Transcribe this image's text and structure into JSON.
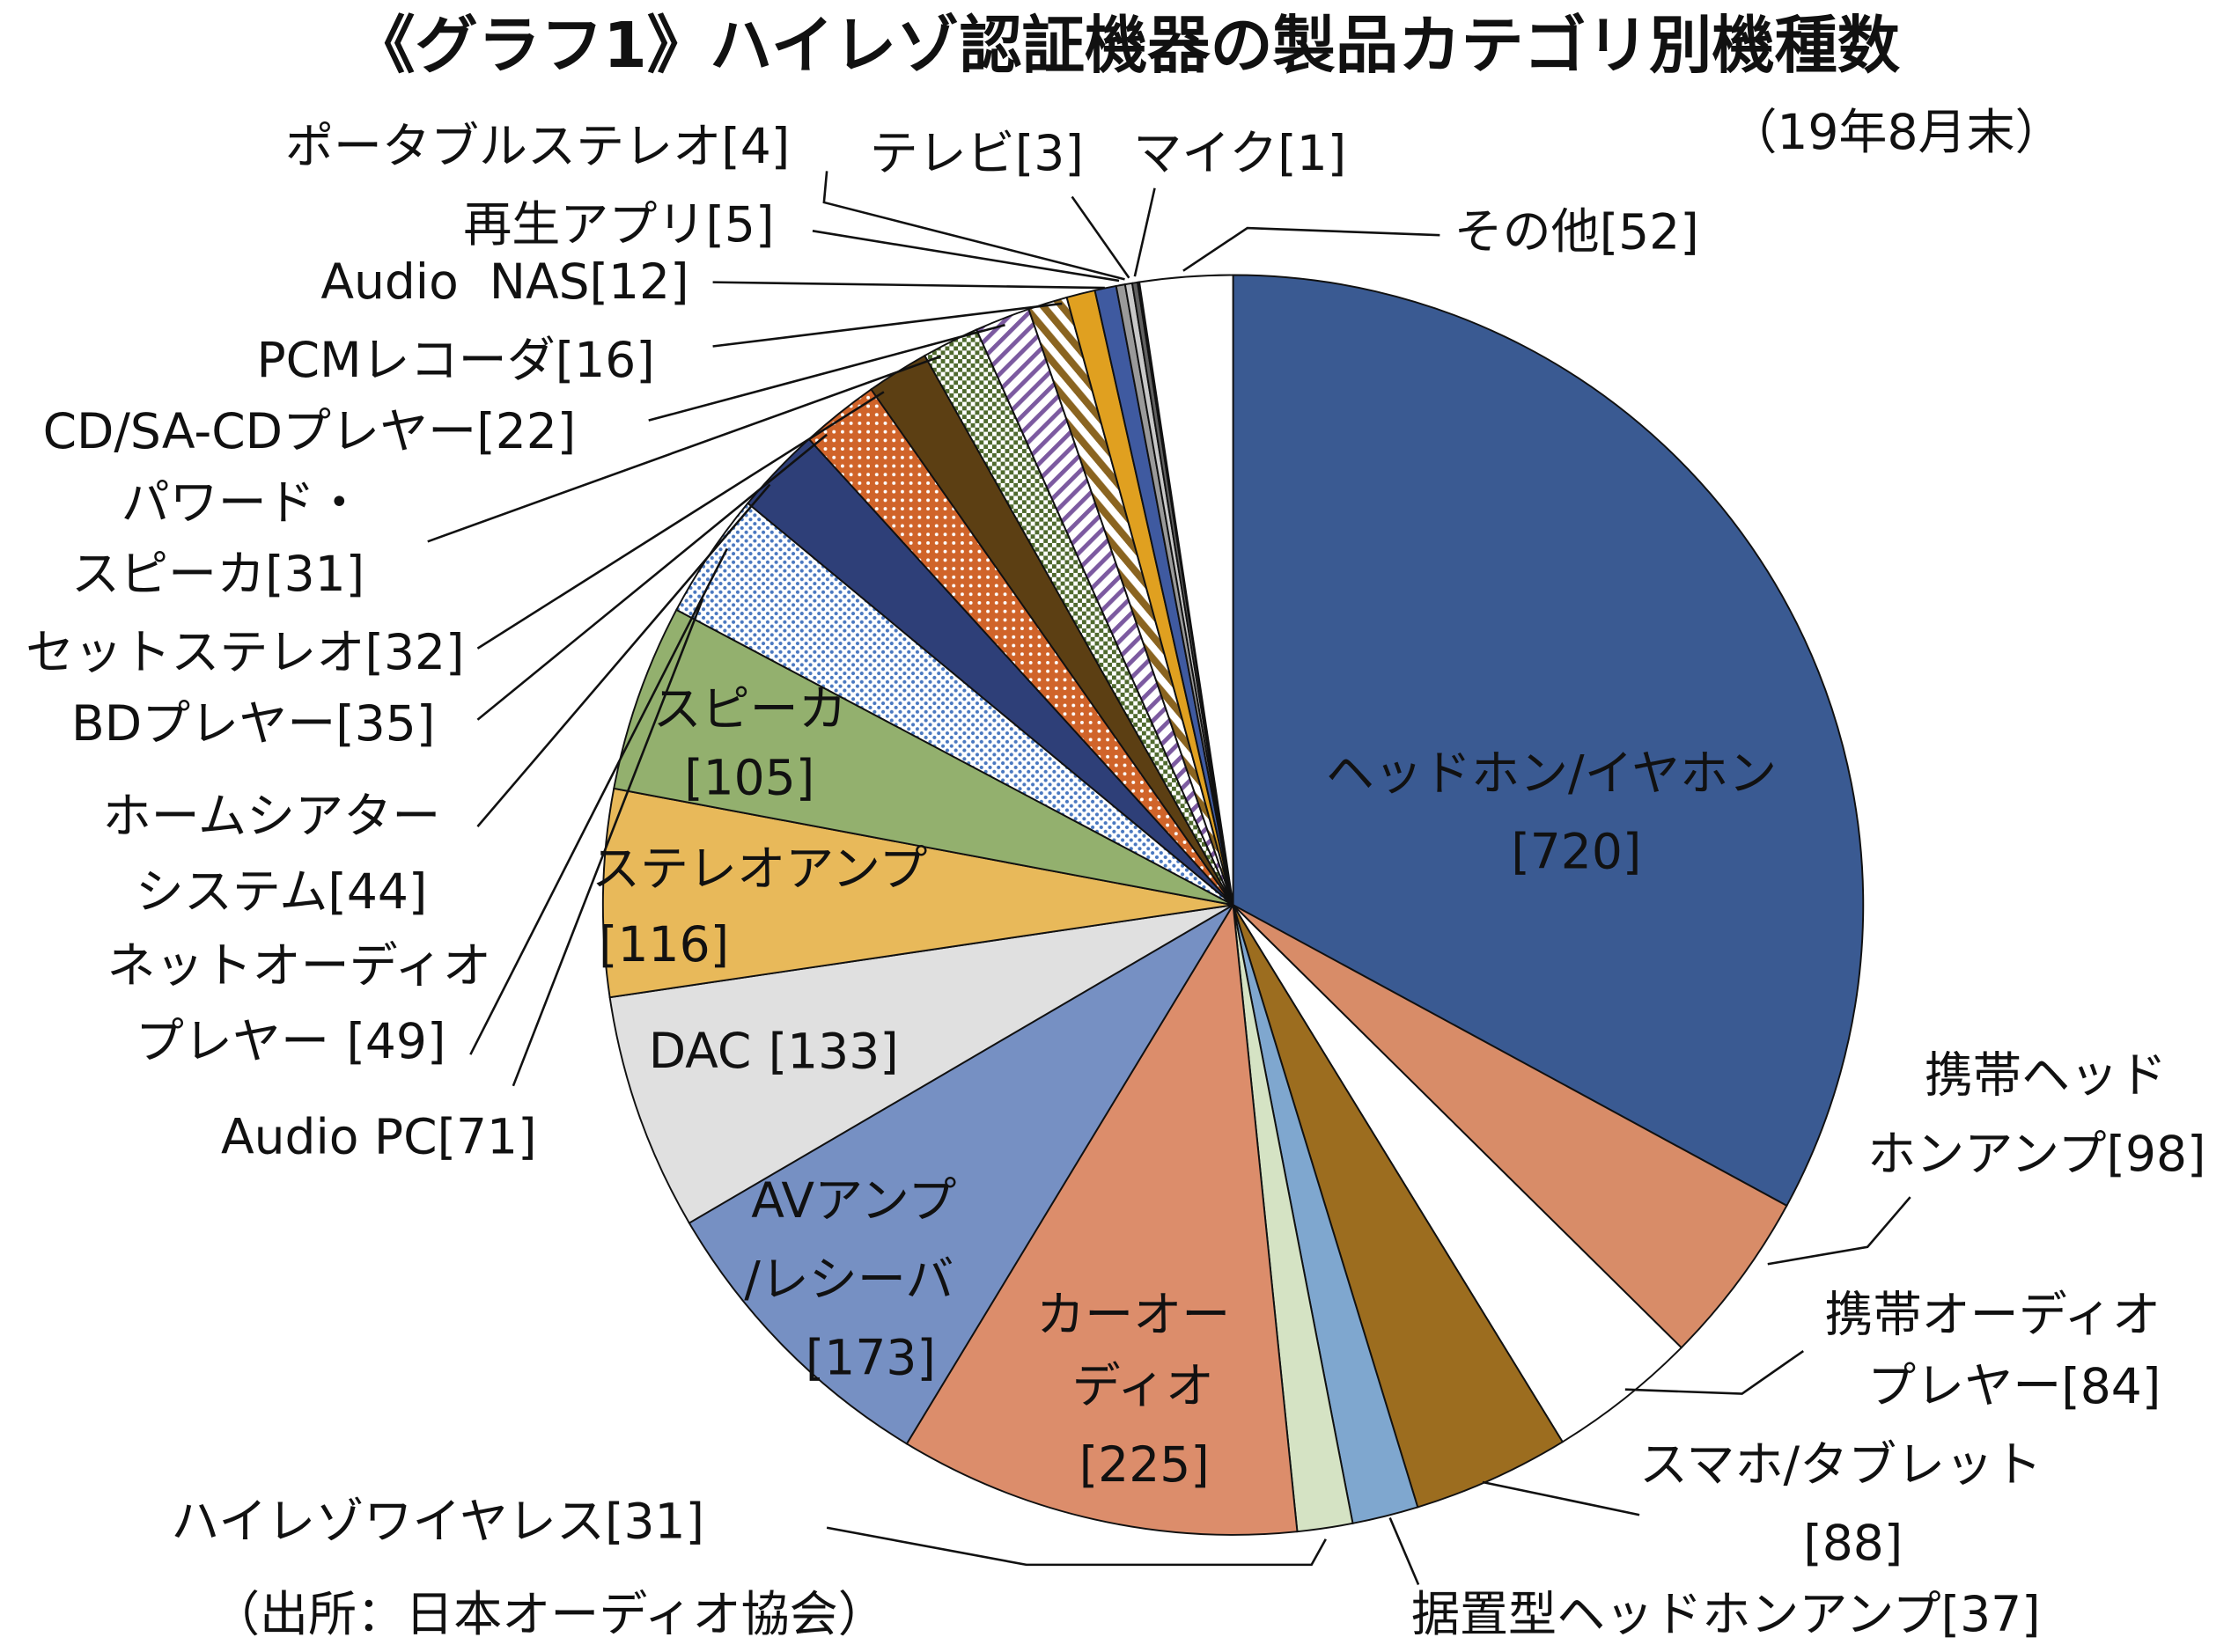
{
  "chart_data": {
    "type": "pie",
    "title": "《グラフ1》ハイレゾ認証機器の製品カテゴリ別機種数",
    "subtitle": "（19年8月末）",
    "source": "（出所：日本オーディオ協会）",
    "categories": [
      "ヘッドホン/イヤホン",
      "携帯ヘッドホンアンプ",
      "携帯オーディオプレヤー",
      "スマホ/タブレット",
      "据置型ヘッドホンアンプ",
      "ハイレゾワイヤレス",
      "カーオーディオ",
      "AVアンプ/レシーバ",
      "DAC",
      "ステレオアンプ",
      "スピーカ",
      "Audio PC",
      "ネットオーディオプレヤー",
      "ホームシアターシステム",
      "BDプレヤー",
      "セットステレオ",
      "パワード・スピーカ",
      "CD/SA-CDプレヤー",
      "PCMレコーダ",
      "Audio  NAS",
      "再生アプリ",
      "ポータブルステレオ",
      "テレビ",
      "マイク",
      "その他"
    ],
    "values": [
      720,
      98,
      84,
      88,
      37,
      31,
      225,
      173,
      133,
      116,
      105,
      71,
      49,
      44,
      35,
      32,
      31,
      22,
      16,
      12,
      5,
      4,
      3,
      1,
      52
    ],
    "value_labels": [
      "[720]",
      "[98]",
      "[84]",
      "[88]",
      "[37]",
      "[31]",
      "[225]",
      "[173]",
      "[133]",
      "[116]",
      "[105]",
      "[71]",
      "[49]",
      "[44]",
      "[35]",
      "[32]",
      "[31]",
      "[22]",
      "[16]",
      "[12]",
      "[5]",
      "[4]",
      "[3]",
      "[1]",
      "[52]"
    ],
    "colors": [
      "#3a5a92",
      "#d88c68",
      "#ffffff",
      "#9c6d1f",
      "#7fa7cf",
      "#d5e3c4",
      "#dc8d6b",
      "#7690c3",
      "#e0e0e0",
      "#e8b95a",
      "#93b06e",
      "#bdd4ee",
      "#2e3f78",
      "#d0642a",
      "#5c3f13",
      "#4f6a2e",
      "#7c5aa0",
      "#8a6420",
      "#e0a020",
      "#3f5aa0",
      "#9a9a9a",
      "#c8c8c8",
      "#606060",
      "#203050",
      "#ffffff"
    ]
  }
}
